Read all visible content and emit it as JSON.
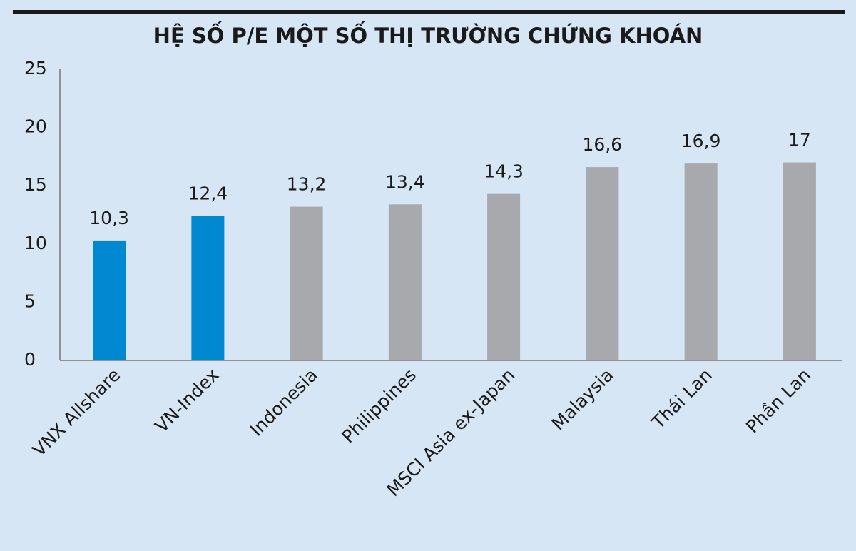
{
  "chart_data": {
    "type": "bar",
    "title": "HỆ SỐ P/E MỘT SỐ THỊ TRƯỜNG CHỨNG KHOÁN",
    "categories": [
      "VNX Allshare",
      "VN-Index",
      "Indonesia",
      "Philippines",
      "MSCI Asia ex-Japan",
      "Malaysia",
      "Thái Lan",
      "Phần Lan"
    ],
    "values": [
      10.3,
      12.4,
      13.2,
      13.4,
      14.3,
      16.6,
      16.9,
      17
    ],
    "value_labels": [
      "10,3",
      "12,4",
      "13,2",
      "13,4",
      "14,3",
      "16,6",
      "16,9",
      "17"
    ],
    "colors": [
      "#0088d1",
      "#0088d1",
      "#a7a9ac",
      "#a7a9ac",
      "#a7a9ac",
      "#a7a9ac",
      "#a7a9ac",
      "#a7a9ac"
    ],
    "ylim": [
      0,
      25
    ],
    "yticks": [
      0,
      5,
      10,
      15,
      20,
      25
    ],
    "grid": false
  }
}
